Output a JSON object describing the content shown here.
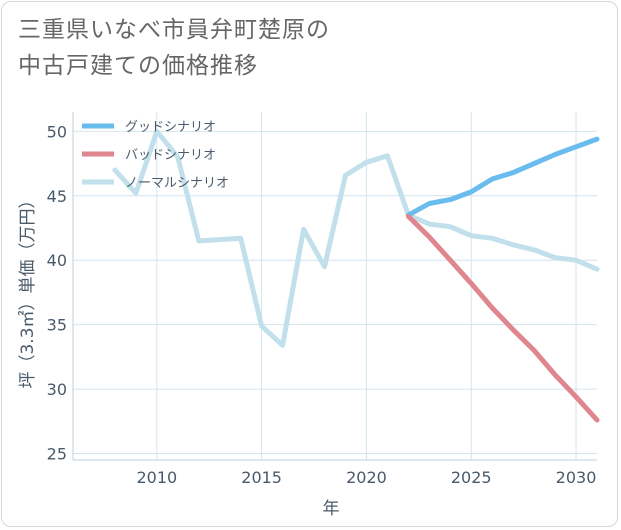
{
  "title": {
    "line1": "三重県いなべ市員弁町楚原の",
    "line2": "中古戸建ての価格推移"
  },
  "chart_data": {
    "type": "line",
    "xlabel": "年",
    "ylabel": "坪（3.3㎡）単価（万円）",
    "xlim": [
      2006,
      2031
    ],
    "ylim": [
      24.5,
      51.5
    ],
    "xticks": [
      2010,
      2015,
      2020,
      2025,
      2030
    ],
    "yticks": [
      25,
      30,
      35,
      40,
      45,
      50
    ],
    "grid": true,
    "legend_position": "top-left",
    "series": [
      {
        "name": "グッドシナリオ",
        "color": "#6bbcee",
        "x": [
          2022,
          2023,
          2024,
          2025,
          2026,
          2027,
          2028,
          2029,
          2030,
          2031
        ],
        "y": [
          43.5,
          44.4,
          44.7,
          45.3,
          46.3,
          46.8,
          47.5,
          48.2,
          48.8,
          49.4
        ]
      },
      {
        "name": "バッドシナリオ",
        "color": "#e0868e",
        "x": [
          2022,
          2023,
          2024,
          2025,
          2026,
          2027,
          2028,
          2029,
          2030,
          2031
        ],
        "y": [
          43.4,
          41.8,
          40.0,
          38.2,
          36.3,
          34.6,
          33.0,
          31.1,
          29.4,
          27.6
        ]
      },
      {
        "name": "ノーマルシナリオ",
        "color": "#c2dfec",
        "x": [
          2008,
          2009,
          2010,
          2011,
          2012,
          2013,
          2014,
          2015,
          2016,
          2017,
          2018,
          2019,
          2020,
          2021,
          2022,
          2023,
          2024,
          2025,
          2026,
          2027,
          2028,
          2029,
          2030,
          2031
        ],
        "y": [
          47.0,
          45.2,
          50.0,
          48.0,
          41.5,
          41.6,
          41.7,
          34.9,
          33.4,
          42.4,
          39.5,
          46.6,
          47.6,
          48.1,
          43.5,
          42.8,
          42.6,
          41.9,
          41.7,
          41.2,
          40.8,
          40.2,
          40.0,
          39.3
        ]
      }
    ]
  }
}
